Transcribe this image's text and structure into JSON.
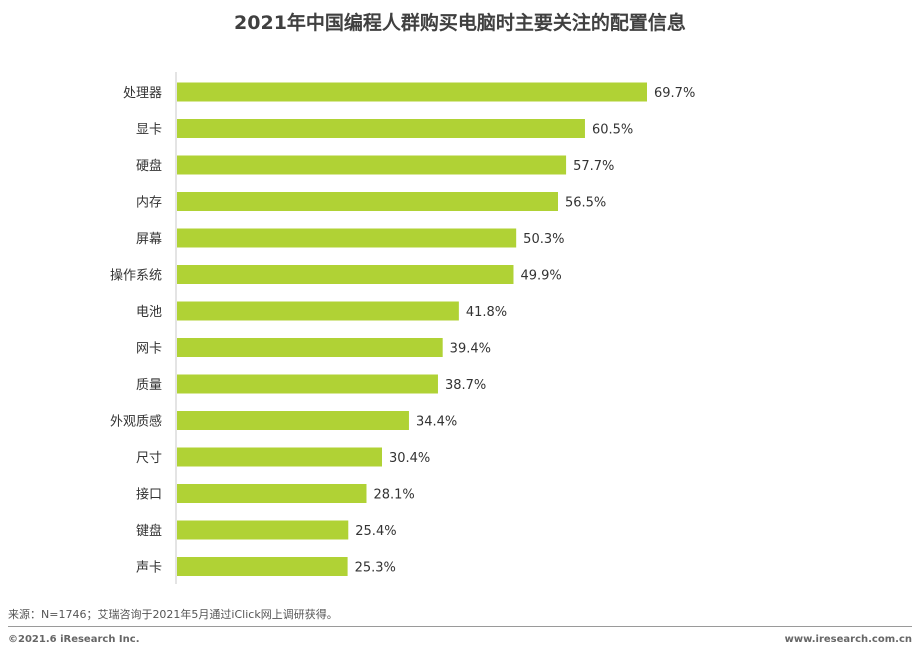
{
  "chart_data": {
    "type": "bar",
    "orientation": "horizontal",
    "title": "2021年中国编程人群购买电脑时主要关注的配置信息",
    "categories": [
      "处理器",
      "显卡",
      "硬盘",
      "内存",
      "屏幕",
      "操作系统",
      "电池",
      "网卡",
      "质量",
      "外观质感",
      "尺寸",
      "接口",
      "键盘",
      "声卡"
    ],
    "values": [
      69.7,
      60.5,
      57.7,
      56.5,
      50.3,
      49.9,
      41.8,
      39.4,
      38.7,
      34.4,
      30.4,
      28.1,
      25.4,
      25.3
    ],
    "value_labels": [
      "69.7%",
      "60.5%",
      "57.7%",
      "56.5%",
      "50.3%",
      "49.9%",
      "41.8%",
      "39.4%",
      "38.7%",
      "34.4%",
      "30.4%",
      "28.1%",
      "25.4%",
      "25.3%"
    ],
    "value_unit": "%",
    "xlim": [
      0,
      100
    ],
    "grid": false,
    "legend": "none",
    "bar_color": "#b0d235"
  },
  "source": "来源：N=1746；艾瑞咨询于2021年5月通过iClick网上调研获得。",
  "footer": {
    "copyright": "©2021.6 iResearch Inc.",
    "website": "www.iresearch.com.cn"
  }
}
